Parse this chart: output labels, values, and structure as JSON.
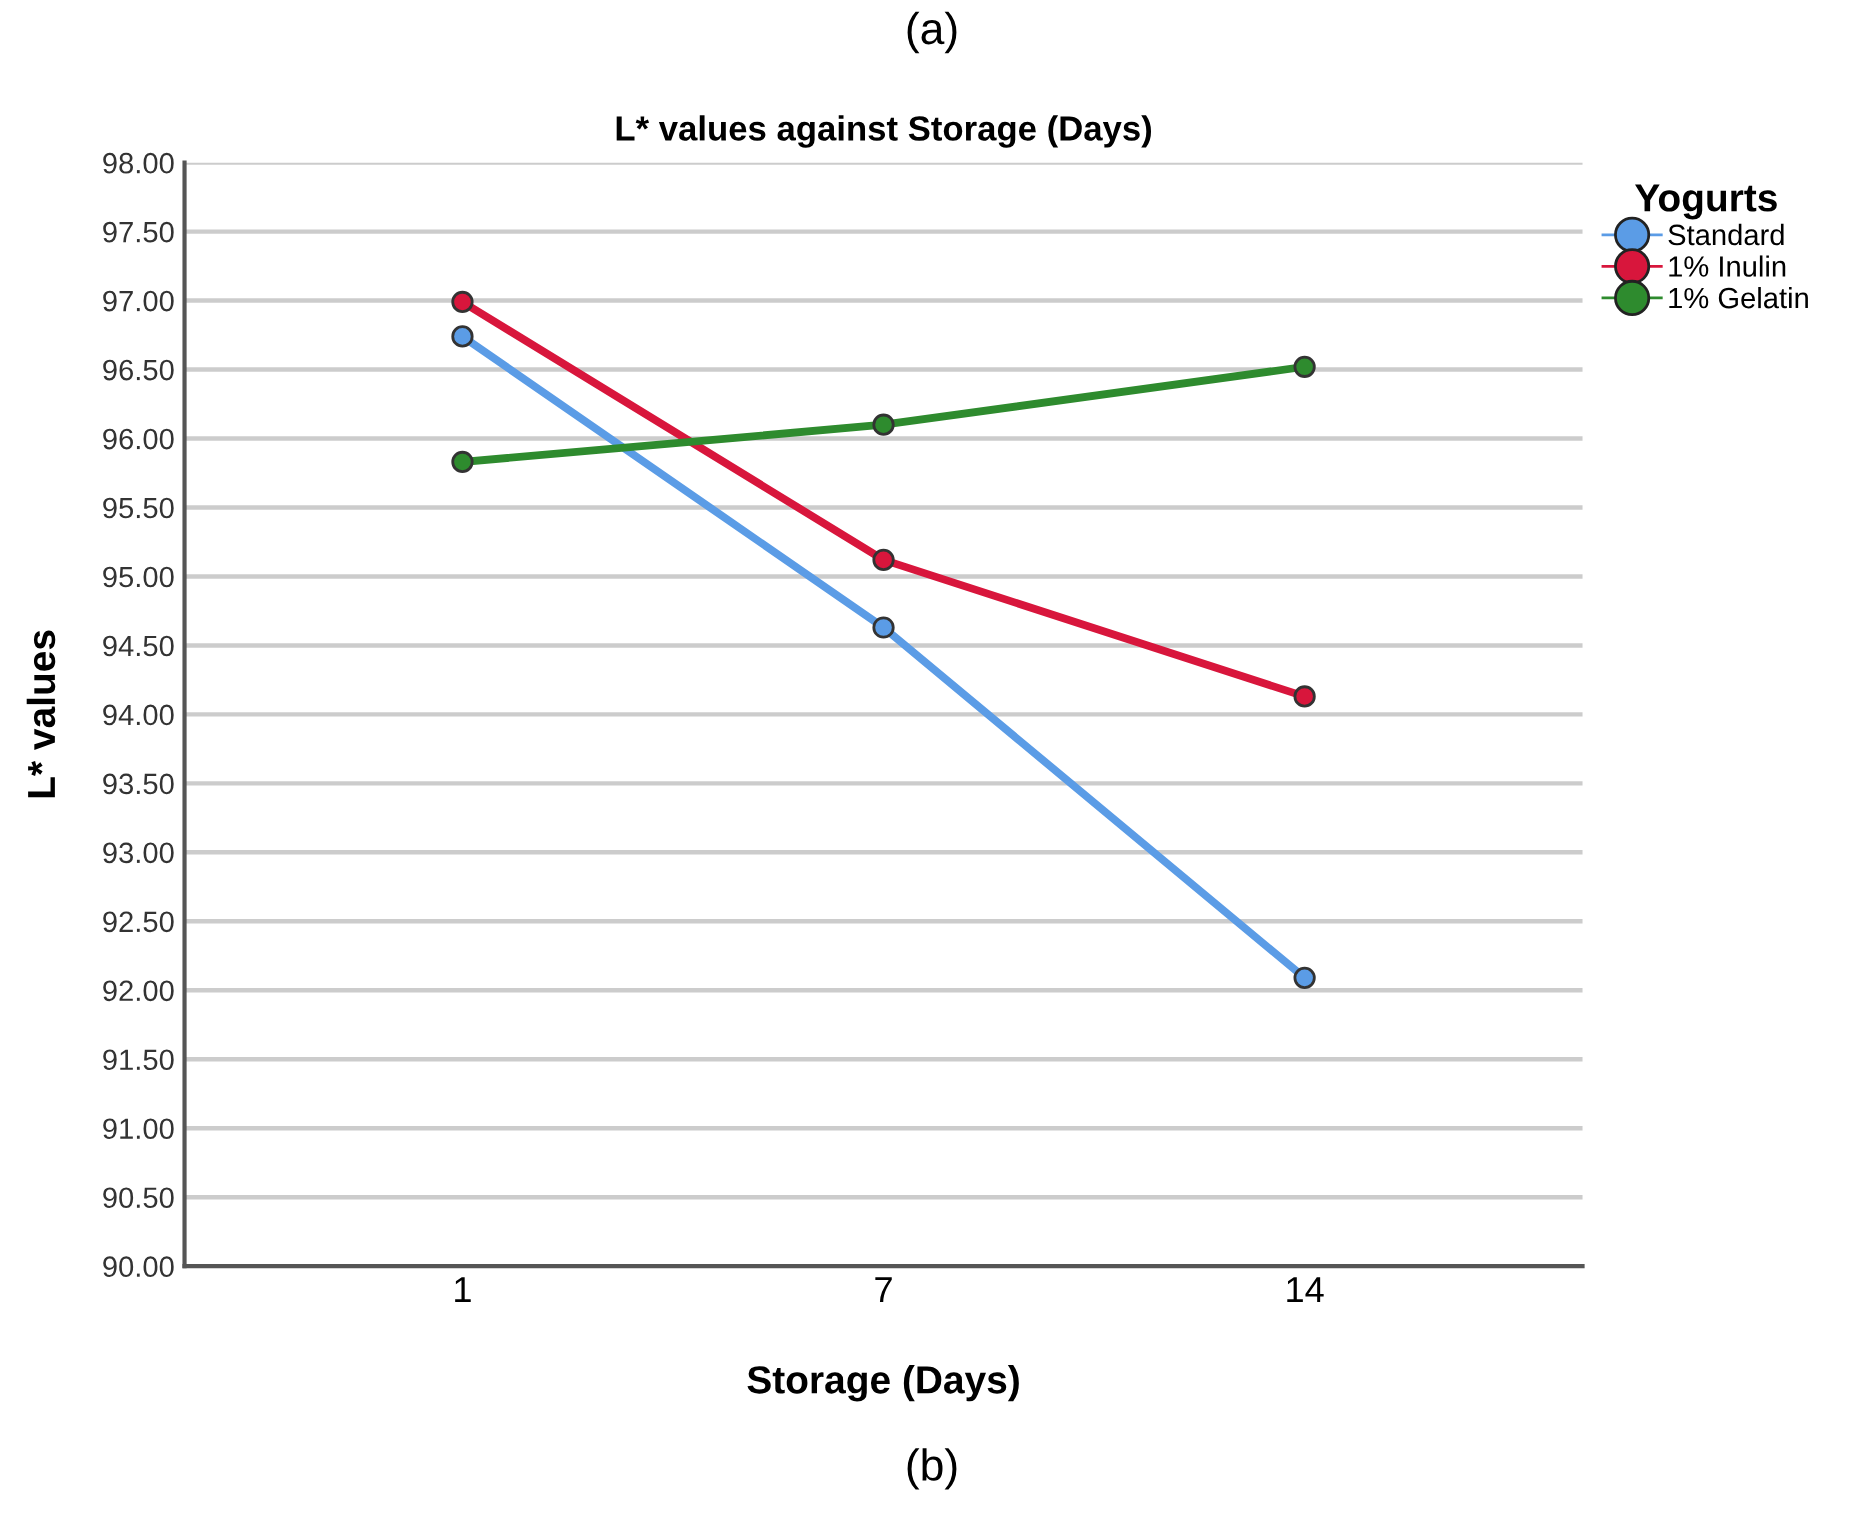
{
  "chart_data": {
    "type": "line",
    "title": "L* values against Storage (Days)",
    "xlabel": "Storage (Days)",
    "ylabel": "L* values",
    "legend_title": "Yogurts",
    "annotations": [
      "(a)",
      "(b)"
    ],
    "categories": [
      "1",
      "7",
      "14"
    ],
    "series": [
      {
        "name": "Standard",
        "color": "#5b9ce6",
        "values": [
          96.74,
          94.63,
          92.09
        ]
      },
      {
        "name": "1% Inulin",
        "color": "#d8163c",
        "values": [
          96.99,
          95.12,
          94.13
        ]
      },
      {
        "name": "1% Gelatin",
        "color": "#2e8b2e",
        "values": [
          95.83,
          96.1,
          96.52
        ]
      }
    ],
    "ylim": [
      90,
      98
    ],
    "yticks": [
      {
        "value": 90,
        "label": "90.00"
      },
      {
        "value": 90.5,
        "label": "90.50"
      },
      {
        "value": 91,
        "label": "91.00"
      },
      {
        "value": 91.5,
        "label": "91.50"
      },
      {
        "value": 92,
        "label": "92.00"
      },
      {
        "value": 92.5,
        "label": "92.50"
      },
      {
        "value": 93,
        "label": "93.00"
      },
      {
        "value": 93.5,
        "label": "93.50"
      },
      {
        "value": 94,
        "label": "94.00"
      },
      {
        "value": 94.5,
        "label": "94.50"
      },
      {
        "value": 95,
        "label": "95.00"
      },
      {
        "value": 95.5,
        "label": "95.50"
      },
      {
        "value": 96,
        "label": "96.00"
      },
      {
        "value": 96.5,
        "label": "96.50"
      },
      {
        "value": 97,
        "label": "97.00"
      },
      {
        "value": 97.5,
        "label": "97.50"
      },
      {
        "value": 98,
        "label": "98.00"
      }
    ],
    "grid": "y",
    "legend": "top right",
    "marker": "circle",
    "line_style": "solid"
  }
}
